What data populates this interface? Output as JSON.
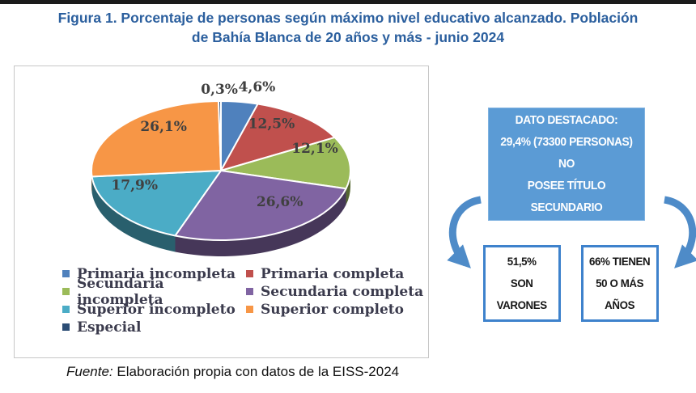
{
  "page": {
    "title_line1": "Figura 1. Porcentaje de personas según máximo nivel educativo alcanzado. Población",
    "title_line2": "de Bahía Blanca de 20 años y más - junio 2024",
    "source_prefix": "Fuente:",
    "source_text": " Elaboración propia con datos de la EISS-2024"
  },
  "chart_data": {
    "type": "pie",
    "is_3d": true,
    "title": "",
    "labels": [
      "Primaria incompleta",
      "Primaria completa",
      "Secundaria incompleta",
      "Secundaria completa",
      "Superior incompleto",
      "Superior completo",
      "Especial"
    ],
    "values": [
      4.6,
      12.5,
      12.1,
      26.6,
      17.9,
      26.1,
      0.3
    ],
    "value_labels": [
      "4,6%",
      "12,5%",
      "12,1%",
      "26,6%",
      "17,9%",
      "26,1%",
      "0,3%"
    ],
    "colors": [
      "#4F81BD",
      "#C0504D",
      "#9BBB59",
      "#8064A2",
      "#4BACC6",
      "#F79646",
      "#2C4D75"
    ],
    "legend_position": "bottom-two-columns",
    "label_color": "#404040",
    "legend_text_color": "#3B3B4D"
  },
  "callouts": {
    "highlight_box": {
      "lines": [
        "DATO DESTACADO:",
        "29,4% (73300 PERSONAS) NO",
        "POSEE TÍTULO SECUNDARIO"
      ],
      "bg_color": "#5B9BD5",
      "text_color": "#FFFFFF"
    },
    "stat_boxes": [
      {
        "lines": [
          "51,5%",
          "SON",
          "VARONES"
        ]
      },
      {
        "lines": [
          "66% TIENEN",
          "50 O MÁS",
          "AÑOS"
        ]
      }
    ],
    "arrow_color": "#4E8BC8",
    "border_color": "#3E82CC"
  }
}
